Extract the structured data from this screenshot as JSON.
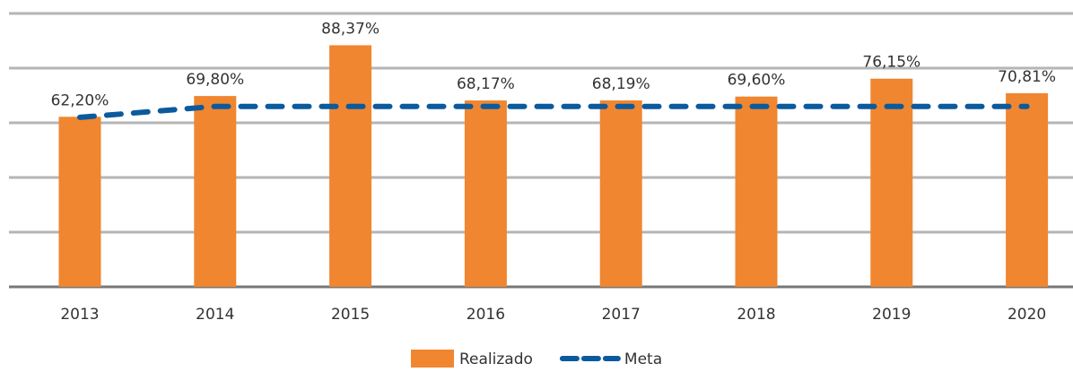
{
  "chart_data": {
    "type": "bar",
    "categories": [
      "2013",
      "2014",
      "2015",
      "2016",
      "2017",
      "2018",
      "2019",
      "2020"
    ],
    "series": [
      {
        "name": "Realizado",
        "type": "bar",
        "color": "#f0862f",
        "values": [
          62.2,
          69.8,
          88.37,
          68.17,
          68.19,
          69.6,
          76.15,
          70.81
        ],
        "value_labels": [
          "62,20%",
          "69,80%",
          "88,37%",
          "68,17%",
          "68,19%",
          "69,60%",
          "76,15%",
          "70,81%"
        ]
      },
      {
        "name": "Meta",
        "type": "line",
        "dashed": true,
        "color": "#0c5a9e",
        "values": [
          62,
          66,
          66,
          66,
          66,
          66,
          66,
          66
        ]
      }
    ],
    "ylim": [
      0,
      100
    ],
    "yticks": [
      0,
      20,
      40,
      60,
      80,
      100
    ],
    "grid": true,
    "legend": "bottom"
  }
}
